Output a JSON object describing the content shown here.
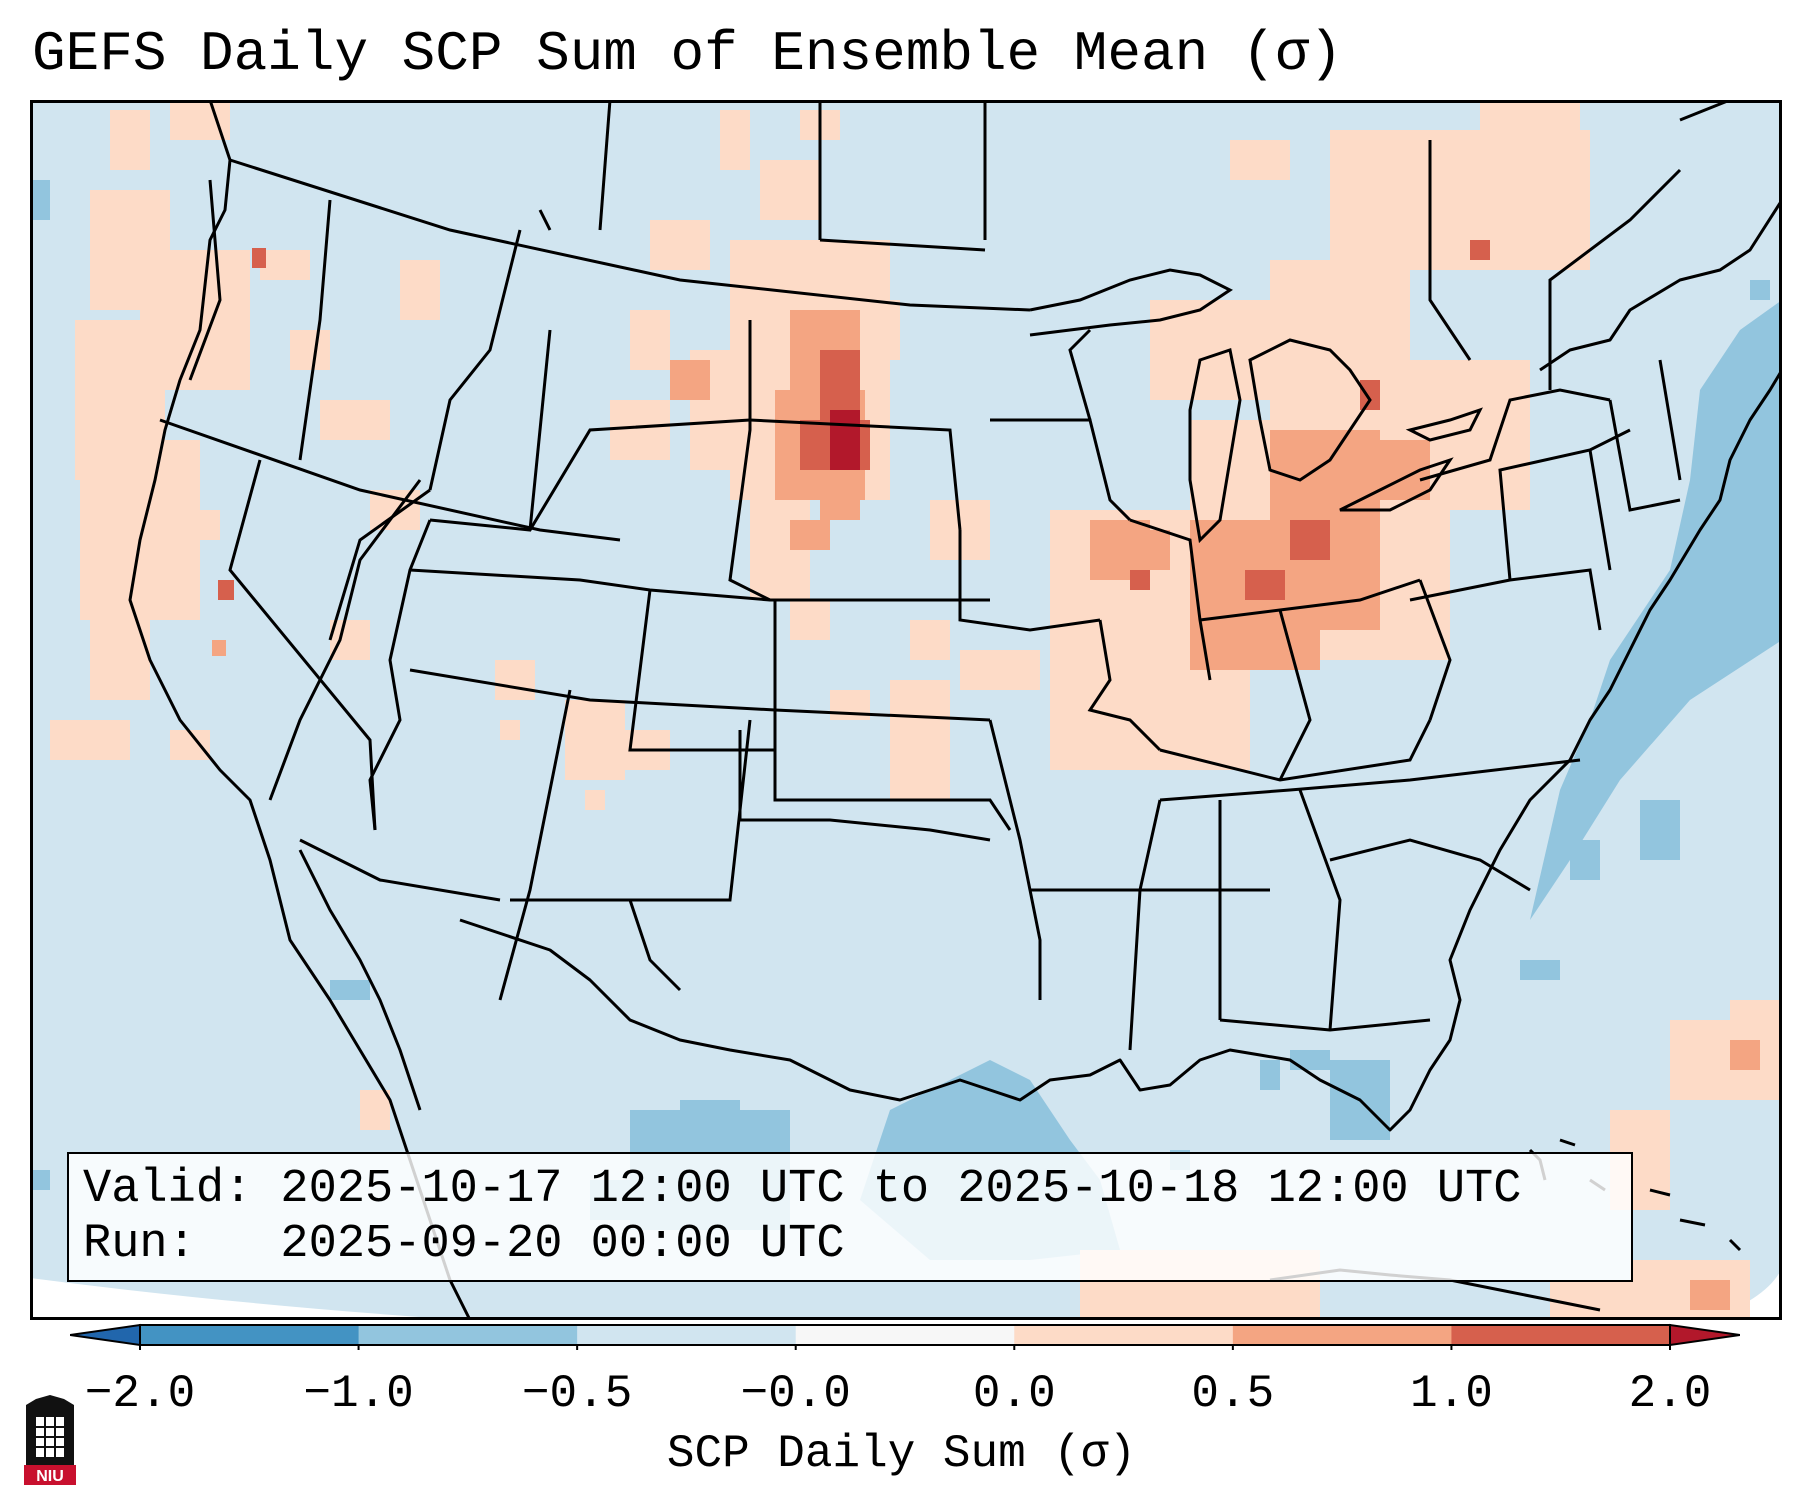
{
  "title": "GEFS Daily SCP Sum of Ensemble Mean (σ)",
  "info": {
    "valid": "Valid: 2025-10-17 12:00 UTC to 2025-10-18 12:00 UTC",
    "run": "Run:   2025-09-20 00:00 UTC"
  },
  "colorbar": {
    "label": "SCP Daily Sum (σ)",
    "ticks": [
      "−2.0",
      "−1.0",
      "−0.5",
      "−0.0",
      "0.0",
      "0.5",
      "1.0",
      "2.0"
    ],
    "bins": [
      {
        "range": "-2.0 to -1.0",
        "color": "#4393c3"
      },
      {
        "range": "-1.0 to -0.5",
        "color": "#92c5de"
      },
      {
        "range": "-0.5 to -0.0",
        "color": "#d1e5f0"
      },
      {
        "range": "-0.0 to 0.0",
        "color": "#f7f7f7"
      },
      {
        "range": "0.0 to 0.5",
        "color": "#fddbc7"
      },
      {
        "range": "0.5 to 1.0",
        "color": "#f4a582"
      },
      {
        "range": "1.0 to 2.0",
        "color": "#d6604d"
      }
    ],
    "under_color": "#2166ac",
    "over_color": "#b2182b"
  },
  "map": {
    "background_color": "#d1e5f0",
    "features": [
      "Pacific Northwest anomalies",
      "Dakotas maximum",
      "Ohio Valley / Great Lakes positive region",
      "Western Atlantic negative region",
      "Gulf of Mexico negative region"
    ]
  },
  "logo": {
    "text": "NIU",
    "name": "niu-logo"
  }
}
